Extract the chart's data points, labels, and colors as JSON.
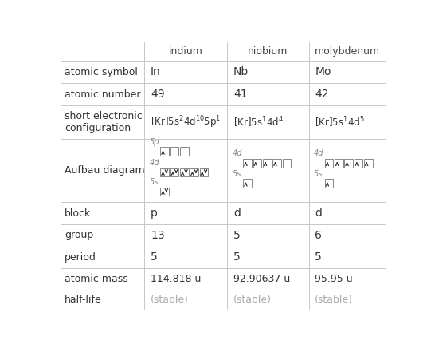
{
  "columns": [
    "indium",
    "niobium",
    "molybdenum"
  ],
  "cell_data": {
    "atomic symbol": [
      "In",
      "Nb",
      "Mo"
    ],
    "atomic number": [
      "49",
      "41",
      "42"
    ],
    "config_in": "[Kr]5s$^2$4d$^{10}$5p$^1$",
    "config_nb": "[Kr]5s$^1$4d$^4$",
    "config_mo": "[Kr]5s$^1$4d$^5$",
    "block": [
      "p",
      "d",
      "d"
    ],
    "group": [
      "13",
      "5",
      "6"
    ],
    "period": [
      "5",
      "5",
      "5"
    ],
    "atomic mass": [
      "114.818 u",
      "92.90637 u",
      "95.95 u"
    ],
    "half-life": [
      "(stable)",
      "(stable)",
      "(stable)"
    ]
  },
  "bg_color": "#ffffff",
  "border_color": "#c8c8c8",
  "header_text_color": "#444444",
  "row_label_color": "#333333",
  "cell_text_color": "#333333",
  "stable_color": "#aaaaaa",
  "orbital_label_color": "#888888",
  "orbital_box_color": "#888888",
  "arrow_color": "#333333"
}
